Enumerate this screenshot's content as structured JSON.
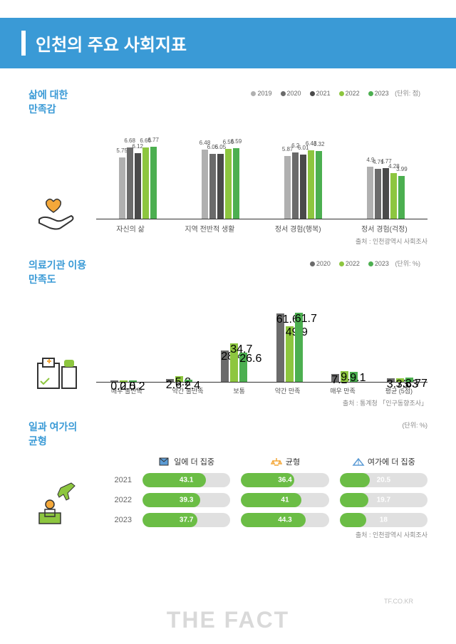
{
  "title": "인천의 주요 사회지표",
  "colors": {
    "brand": "#3a9ad6",
    "y2019": "#b0b0b0",
    "y2020": "#6b6b6b",
    "y2021": "#4a4a4a",
    "y2022": "#8dc63f",
    "y2023": "#4caf50",
    "pill_bg": "#e0e0e0",
    "pill_fill": "#6bbd45"
  },
  "sec1": {
    "title_l1": "삶에 대한",
    "title_l2": "만족감",
    "unit": "(단위: 점)",
    "legend": [
      "2019",
      "2020",
      "2021",
      "2022",
      "2023"
    ],
    "legend_colors": [
      "#b0b0b0",
      "#6b6b6b",
      "#4a4a4a",
      "#8dc63f",
      "#4caf50"
    ],
    "ymax": 8,
    "groups": [
      {
        "label": "자신의 삶",
        "vals": [
          5.75,
          6.68,
          6.12,
          6.66,
          6.77
        ]
      },
      {
        "label": "지역 전반적 생활",
        "vals": [
          6.48,
          6.05,
          6.05,
          6.56,
          6.59
        ]
      },
      {
        "label": "정서 경험(행복)",
        "vals": [
          5.87,
          6.2,
          6.01,
          6.43,
          6.32
        ]
      },
      {
        "label": "정서 경험(걱정)",
        "vals": [
          4.9,
          4.71,
          4.77,
          4.28,
          3.99
        ]
      }
    ],
    "source": "출처 : 인천광역시 사회조사"
  },
  "sec2": {
    "title_l1": "의료기관 이용",
    "title_l2": "만족도",
    "unit": "(단위: %)",
    "legend": [
      "2020",
      "2022",
      "2023"
    ],
    "legend_colors": [
      "#6b6b6b",
      "#8dc63f",
      "#4caf50"
    ],
    "ymax": 70,
    "groups": [
      {
        "label": "매우 불만족",
        "vals": [
          0.2,
          0.5,
          0.2
        ]
      },
      {
        "label": "약간 불만족",
        "vals": [
          2.6,
          5.2,
          2.4
        ]
      },
      {
        "label": "보통",
        "vals": [
          28.4,
          34.7,
          26.6
        ]
      },
      {
        "label": "약간 만족",
        "vals": [
          61.6,
          49.9,
          61.7
        ]
      },
      {
        "label": "매우 만족",
        "vals": [
          7.2,
          9.7,
          9.1
        ]
      },
      {
        "label": "평균 (5점)",
        "vals": [
          3.73,
          3.63,
          3.77
        ]
      }
    ],
    "source": "출처 : 통계청 「인구동향조사」"
  },
  "sec3": {
    "title_l1": "일과 여가의",
    "title_l2": "균형",
    "unit": "(단위: %)",
    "headers": [
      "일에 더 집중",
      "균형",
      "여가에 더 집중"
    ],
    "years": [
      "2021",
      "2022",
      "2023"
    ],
    "rows": [
      [
        43.1,
        36.4,
        20.5
      ],
      [
        39.3,
        41.0,
        19.7
      ],
      [
        37.7,
        44.3,
        18.0
      ]
    ],
    "pill_max": 60,
    "source": "출처 : 인천광역시 사회조사"
  },
  "watermark": "THE FACT",
  "watermark_small": "TF.CO.KR"
}
